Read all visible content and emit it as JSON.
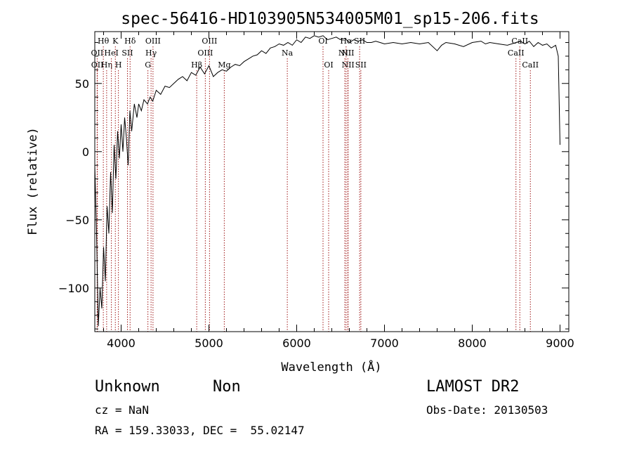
{
  "chart_data": {
    "type": "line",
    "title": "spec-56416-HD103905N534005M01_sp15-206.fits",
    "xlabel": "Wavelength (Å)",
    "ylabel": "Flux (relative)",
    "xlim": [
      3700,
      9100
    ],
    "ylim": [
      -132,
      88
    ],
    "xticks": [
      4000,
      5000,
      6000,
      7000,
      8000,
      9000
    ],
    "yticks": [
      -100,
      -50,
      0,
      50
    ],
    "grid": false,
    "line_color": "#000000",
    "marker_color": "#a01818",
    "series": [
      {
        "x": [
          3700,
          3720,
          3740,
          3760,
          3780,
          3800,
          3820,
          3840,
          3860,
          3880,
          3900,
          3920,
          3940,
          3960,
          3980,
          4000,
          4020,
          4040,
          4060,
          4080,
          4100,
          4120,
          4150,
          4180,
          4200,
          4230,
          4260,
          4300,
          4330,
          4360,
          4400,
          4450,
          4500,
          4550,
          4600,
          4650,
          4700,
          4750,
          4800,
          4850,
          4900,
          4950,
          5000,
          5050,
          5100,
          5150,
          5200,
          5250,
          5300,
          5350,
          5400,
          5450,
          5500,
          5550,
          5600,
          5650,
          5700,
          5750,
          5800,
          5850,
          5900,
          5950,
          6000,
          6050,
          6100,
          6150,
          6200,
          6250,
          6300,
          6350,
          6400,
          6450,
          6500,
          6550,
          6600,
          6650,
          6700,
          6750,
          6800,
          6850,
          6900,
          6950,
          7000,
          7100,
          7200,
          7300,
          7400,
          7500,
          7600,
          7650,
          7700,
          7800,
          7900,
          8000,
          8100,
          8150,
          8200,
          8300,
          8400,
          8500,
          8550,
          8600,
          8650,
          8700,
          8750,
          8800,
          8850,
          8900,
          8950,
          8980,
          9000
        ],
        "y": [
          -10,
          -60,
          -128,
          -100,
          -115,
          -70,
          -95,
          -40,
          -60,
          -15,
          -45,
          5,
          -20,
          15,
          -5,
          20,
          0,
          25,
          10,
          -10,
          30,
          15,
          35,
          25,
          35,
          30,
          38,
          35,
          40,
          37,
          45,
          42,
          48,
          47,
          50,
          53,
          55,
          52,
          58,
          56,
          62,
          57,
          63,
          55,
          58,
          60,
          59,
          62,
          64,
          63,
          66,
          68,
          70,
          71,
          74,
          72,
          76,
          77,
          79,
          78,
          80,
          78,
          82,
          80,
          84,
          83,
          85,
          84,
          85,
          82,
          83,
          84,
          82,
          83,
          80,
          82,
          81,
          82,
          80,
          80,
          81,
          80,
          79,
          80,
          79,
          80,
          79,
          80,
          74,
          78,
          80,
          79,
          77,
          80,
          81,
          79,
          80,
          79,
          78,
          80,
          81,
          79,
          81,
          77,
          80,
          78,
          79,
          76,
          78,
          70,
          5
        ]
      }
    ],
    "line_markers": [
      {
        "label": "Hθ",
        "x": 3797,
        "row": 1
      },
      {
        "label": "OII",
        "x": 3727,
        "row": 2
      },
      {
        "label": "OII",
        "x": 3729,
        "row": 3
      },
      {
        "label": "Hη",
        "x": 3835,
        "row": 3
      },
      {
        "label": "K",
        "x": 3934,
        "row": 1
      },
      {
        "label": "HeI",
        "x": 3889,
        "row": 2
      },
      {
        "label": "H",
        "x": 3969,
        "row": 3
      },
      {
        "label": "Hδ",
        "x": 4102,
        "row": 1
      },
      {
        "label": "SII",
        "x": 4072,
        "row": 2
      },
      {
        "label": "OIII",
        "x": 4363,
        "row": 1
      },
      {
        "label": "Hγ",
        "x": 4341,
        "row": 2
      },
      {
        "label": "G",
        "x": 4305,
        "row": 3
      },
      {
        "label": "OIII",
        "x": 5007,
        "row": 1
      },
      {
        "label": "OIII",
        "x": 4959,
        "row": 2
      },
      {
        "label": "Hβ",
        "x": 4861,
        "row": 3
      },
      {
        "label": "Mg",
        "x": 5175,
        "row": 3
      },
      {
        "label": "Na",
        "x": 5893,
        "row": 2
      },
      {
        "label": "OI",
        "x": 6300,
        "row": 1
      },
      {
        "label": "OI",
        "x": 6364,
        "row": 3
      },
      {
        "label": "Hα",
        "x": 6563,
        "row": 1
      },
      {
        "label": "NII",
        "x": 6548,
        "row": 2
      },
      {
        "label": "NII",
        "x": 6583,
        "row": 2
      },
      {
        "label": "NII",
        "x": 6585,
        "row": 3
      },
      {
        "label": "SII",
        "x": 6717,
        "row": 1
      },
      {
        "label": "SII",
        "x": 6731,
        "row": 3
      },
      {
        "label": "CaII",
        "x": 8542,
        "row": 1
      },
      {
        "label": "CaII",
        "x": 8498,
        "row": 2
      },
      {
        "label": "CaII",
        "x": 8662,
        "row": 3
      }
    ]
  },
  "info": {
    "object_class": "Unknown",
    "object_subclass": "Non",
    "survey": "LAMOST DR2",
    "redshift": "cz = NaN",
    "obs_date": "Obs-Date: 20130503",
    "coordinates": "RA = 159.33033, DEC =  55.02147"
  }
}
